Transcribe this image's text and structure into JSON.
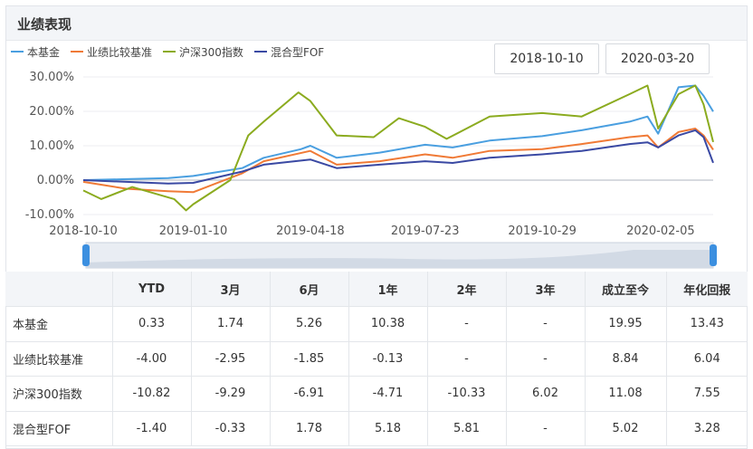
{
  "title": "业绩表现",
  "date_range": {
    "start": "2018-10-10",
    "end": "2020-03-20"
  },
  "colors": {
    "fund": "#4a9fe0",
    "benchmark": "#f07a36",
    "hs300": "#8bab1f",
    "fof": "#3a49a3"
  },
  "chart_data": {
    "type": "line",
    "x_ticks": [
      "2018-10-10",
      "2019-01-10",
      "2019-04-18",
      "2019-07-23",
      "2019-10-29",
      "2020-02-05"
    ],
    "y_ticks": [
      "30.00%",
      "20.00%",
      "10.00%",
      "0.00%",
      "-10.00%"
    ],
    "ylim": [
      -10,
      30
    ],
    "x_start": "2018-10-10",
    "x_end": "2020-03-20",
    "series": [
      {
        "name": "本基金",
        "color": "#4a9fe0",
        "points": [
          [
            "2018-10-10",
            0
          ],
          [
            "2018-11-15",
            0.3
          ],
          [
            "2018-12-20",
            0.6
          ],
          [
            "2019-01-10",
            1.2
          ],
          [
            "2019-02-20",
            3.5
          ],
          [
            "2019-03-10",
            6.5
          ],
          [
            "2019-04-10",
            9
          ],
          [
            "2019-04-18",
            10
          ],
          [
            "2019-05-10",
            6.5
          ],
          [
            "2019-06-15",
            8
          ],
          [
            "2019-07-10",
            9.5
          ],
          [
            "2019-07-23",
            10.3
          ],
          [
            "2019-08-15",
            9.5
          ],
          [
            "2019-09-15",
            11.5
          ],
          [
            "2019-10-29",
            12.8
          ],
          [
            "2019-12-01",
            14.5
          ],
          [
            "2020-01-10",
            17
          ],
          [
            "2020-01-25",
            18.5
          ],
          [
            "2020-02-03",
            13.5
          ],
          [
            "2020-02-20",
            27
          ],
          [
            "2020-03-05",
            27.5
          ],
          [
            "2020-03-12",
            24.5
          ],
          [
            "2020-03-20",
            19.95
          ]
        ]
      },
      {
        "name": "业绩比较基准",
        "color": "#f07a36",
        "points": [
          [
            "2018-10-10",
            -0.5
          ],
          [
            "2018-11-15",
            -2.5
          ],
          [
            "2018-12-20",
            -3.2
          ],
          [
            "2019-01-10",
            -3.5
          ],
          [
            "2019-02-20",
            2
          ],
          [
            "2019-03-10",
            5.5
          ],
          [
            "2019-04-18",
            8.5
          ],
          [
            "2019-05-10",
            4.5
          ],
          [
            "2019-06-15",
            5.5
          ],
          [
            "2019-07-23",
            7.5
          ],
          [
            "2019-08-15",
            6.5
          ],
          [
            "2019-09-15",
            8.5
          ],
          [
            "2019-10-29",
            9
          ],
          [
            "2019-12-01",
            10.5
          ],
          [
            "2020-01-10",
            12.5
          ],
          [
            "2020-01-25",
            13
          ],
          [
            "2020-02-03",
            9.5
          ],
          [
            "2020-02-20",
            14
          ],
          [
            "2020-03-05",
            15
          ],
          [
            "2020-03-12",
            13
          ],
          [
            "2020-03-20",
            8.84
          ]
        ]
      },
      {
        "name": "沪深300指数",
        "color": "#8bab1f",
        "points": [
          [
            "2018-10-10",
            -3
          ],
          [
            "2018-10-25",
            -5.5
          ],
          [
            "2018-11-20",
            -2
          ],
          [
            "2018-12-25",
            -5.5
          ],
          [
            "2019-01-04",
            -8.8
          ],
          [
            "2019-01-10",
            -7
          ],
          [
            "2019-02-10",
            0
          ],
          [
            "2019-02-25",
            13
          ],
          [
            "2019-03-10",
            17
          ],
          [
            "2019-04-08",
            25.5
          ],
          [
            "2019-04-18",
            23
          ],
          [
            "2019-05-10",
            13
          ],
          [
            "2019-06-10",
            12.5
          ],
          [
            "2019-07-01",
            18
          ],
          [
            "2019-07-23",
            15.5
          ],
          [
            "2019-08-10",
            12
          ],
          [
            "2019-09-15",
            18.5
          ],
          [
            "2019-10-29",
            19.5
          ],
          [
            "2019-12-01",
            18.5
          ],
          [
            "2020-01-10",
            25
          ],
          [
            "2020-01-25",
            27.5
          ],
          [
            "2020-02-03",
            15
          ],
          [
            "2020-02-20",
            25
          ],
          [
            "2020-03-05",
            27.5
          ],
          [
            "2020-03-12",
            22
          ],
          [
            "2020-03-20",
            11.08
          ]
        ]
      },
      {
        "name": "混合型FOF",
        "color": "#3a49a3",
        "points": [
          [
            "2018-10-10",
            0
          ],
          [
            "2018-11-15",
            -0.5
          ],
          [
            "2018-12-20",
            -1
          ],
          [
            "2019-01-10",
            -0.8
          ],
          [
            "2019-02-20",
            2.5
          ],
          [
            "2019-03-10",
            4.5
          ],
          [
            "2019-04-18",
            6
          ],
          [
            "2019-05-10",
            3.5
          ],
          [
            "2019-06-15",
            4.5
          ],
          [
            "2019-07-23",
            5.5
          ],
          [
            "2019-08-15",
            5
          ],
          [
            "2019-09-15",
            6.5
          ],
          [
            "2019-10-29",
            7.5
          ],
          [
            "2019-12-01",
            8.5
          ],
          [
            "2020-01-10",
            10.5
          ],
          [
            "2020-01-25",
            11
          ],
          [
            "2020-02-03",
            9.5
          ],
          [
            "2020-02-20",
            13
          ],
          [
            "2020-03-05",
            14.5
          ],
          [
            "2020-03-12",
            12.5
          ],
          [
            "2020-03-20",
            5.02
          ]
        ]
      }
    ]
  },
  "table": {
    "headers": [
      "",
      "YTD",
      "3月",
      "6月",
      "1年",
      "2年",
      "3年",
      "成立至今",
      "年化回报"
    ],
    "rows": [
      [
        "本基金",
        "0.33",
        "1.74",
        "5.26",
        "10.38",
        "-",
        "-",
        "19.95",
        "13.43"
      ],
      [
        "业绩比较基准",
        "-4.00",
        "-2.95",
        "-1.85",
        "-0.13",
        "-",
        "-",
        "8.84",
        "6.04"
      ],
      [
        "沪深300指数",
        "-10.82",
        "-9.29",
        "-6.91",
        "-4.71",
        "-10.33",
        "6.02",
        "11.08",
        "7.55"
      ],
      [
        "混合型FOF",
        "-1.40",
        "-0.33",
        "1.78",
        "5.18",
        "5.81",
        "-",
        "5.02",
        "3.28"
      ]
    ]
  }
}
